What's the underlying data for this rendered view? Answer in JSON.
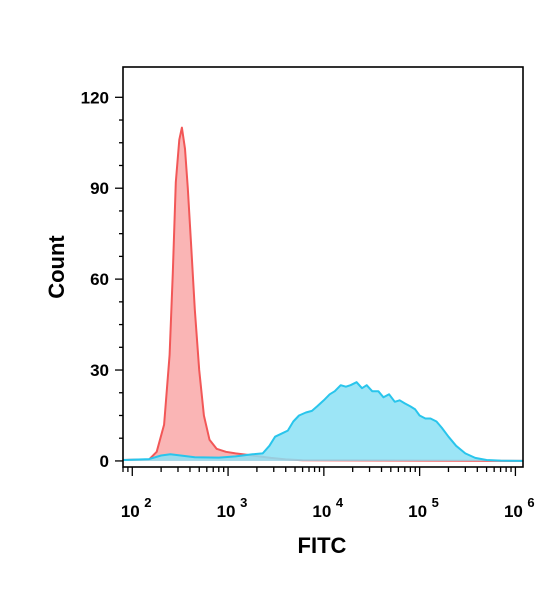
{
  "chart_data": {
    "type": "area",
    "xlabel": "FITC",
    "ylabel": "Count",
    "x_scale": "log",
    "xlim": [
      80,
      1200000
    ],
    "ylim": [
      -2,
      130
    ],
    "y_ticks": [
      0,
      30,
      60,
      90,
      120
    ],
    "x_ticks": [
      {
        "value": 100,
        "base": "10",
        "exp": "2"
      },
      {
        "value": 1000,
        "base": "10",
        "exp": "3"
      },
      {
        "value": 10000,
        "base": "10",
        "exp": "4"
      },
      {
        "value": 100000,
        "base": "10",
        "exp": "5"
      },
      {
        "value": 1000000,
        "base": "10",
        "exp": "6"
      }
    ],
    "grid": false,
    "series": [
      {
        "fill": "#f9a8a8",
        "stroke": "#f25757",
        "points": [
          [
            80,
            0.3
          ],
          [
            150,
            0.5
          ],
          [
            180,
            3
          ],
          [
            215,
            12
          ],
          [
            245,
            35
          ],
          [
            265,
            62
          ],
          [
            285,
            92
          ],
          [
            310,
            106
          ],
          [
            330,
            110
          ],
          [
            355,
            103
          ],
          [
            380,
            90
          ],
          [
            410,
            72
          ],
          [
            450,
            50
          ],
          [
            500,
            30
          ],
          [
            560,
            15
          ],
          [
            640,
            7
          ],
          [
            760,
            4
          ],
          [
            950,
            3
          ],
          [
            1200,
            2.5
          ],
          [
            1600,
            2
          ],
          [
            2100,
            1.5
          ],
          [
            2800,
            1
          ],
          [
            4000,
            0.5
          ],
          [
            6000,
            0.2
          ],
          [
            1200000,
            0
          ]
        ]
      },
      {
        "fill": "#8be0f5",
        "stroke": "#29c5ec",
        "points": [
          [
            80,
            0.3
          ],
          [
            150,
            0.6
          ],
          [
            200,
            1.8
          ],
          [
            250,
            2.2
          ],
          [
            320,
            1.8
          ],
          [
            450,
            1.2
          ],
          [
            800,
            1.1
          ],
          [
            1200,
            1.5
          ],
          [
            1800,
            2.2
          ],
          [
            2300,
            2.5
          ],
          [
            2700,
            5
          ],
          [
            3100,
            8
          ],
          [
            3600,
            9
          ],
          [
            4200,
            10
          ],
          [
            4800,
            13
          ],
          [
            5500,
            15
          ],
          [
            6500,
            16
          ],
          [
            7500,
            16.5
          ],
          [
            8500,
            18
          ],
          [
            10000,
            20
          ],
          [
            11500,
            22
          ],
          [
            13000,
            23
          ],
          [
            15000,
            25
          ],
          [
            17000,
            24.5
          ],
          [
            19000,
            25
          ],
          [
            22000,
            26
          ],
          [
            25000,
            24
          ],
          [
            28000,
            25
          ],
          [
            32000,
            23
          ],
          [
            37000,
            23
          ],
          [
            42000,
            21
          ],
          [
            48000,
            22
          ],
          [
            55000,
            19.5
          ],
          [
            62000,
            20
          ],
          [
            70000,
            19
          ],
          [
            80000,
            18
          ],
          [
            90000,
            17
          ],
          [
            100000,
            15
          ],
          [
            115000,
            14
          ],
          [
            130000,
            14
          ],
          [
            150000,
            13
          ],
          [
            170000,
            11
          ],
          [
            200000,
            8
          ],
          [
            240000,
            5
          ],
          [
            300000,
            2.5
          ],
          [
            380000,
            1
          ],
          [
            500000,
            0.3
          ],
          [
            700000,
            0.1
          ],
          [
            1200000,
            0
          ]
        ]
      }
    ]
  }
}
